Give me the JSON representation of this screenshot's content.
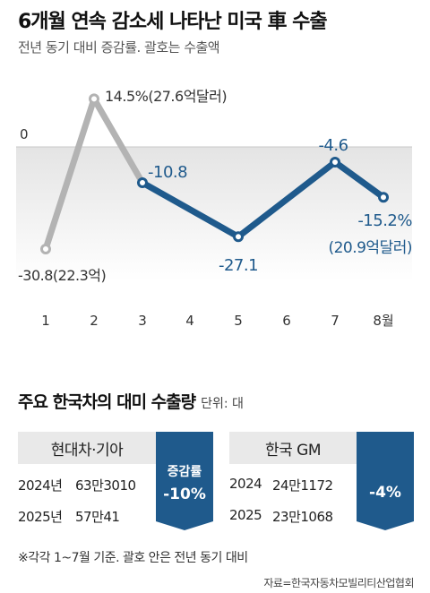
{
  "header": {
    "title": "6개월 연속 감소세 나타난 미국 車 수출",
    "subtitle": "전년 동기 대비 증감률. 괄호는 수출액"
  },
  "chart_data": {
    "type": "line",
    "zero_label": "0",
    "categories": [
      "1",
      "2",
      "3",
      "4",
      "5",
      "6",
      "7",
      "8월"
    ],
    "values": [
      -30.8,
      14.5,
      -10.8,
      null,
      -27.1,
      null,
      -4.6,
      -15.2
    ],
    "highlight_from_index": 2,
    "data_labels": [
      "-30.8(22.3억)",
      "14.5%(27.6억달러)",
      "-10.8",
      "",
      "-27.1",
      "",
      "-4.6",
      "-15.2%"
    ],
    "extra_label": "(20.9억달러)",
    "colors": {
      "gray": "#b3b3b3",
      "blue": "#1f5a8c"
    }
  },
  "section": {
    "title": "주요 한국차의 대미 수출량",
    "unit": "단위: 대"
  },
  "cards": [
    {
      "label": "현대차·기아",
      "rows": [
        {
          "year": "2024년",
          "value": "63만3010"
        },
        {
          "year": "2025년",
          "value": "57만41"
        }
      ],
      "badge_label": "증감률",
      "badge_value": "-10%"
    },
    {
      "label": "한국 GM",
      "rows": [
        {
          "year": "2024",
          "value": "24만1172"
        },
        {
          "year": "2025",
          "value": "23만1068"
        }
      ],
      "badge_label": "",
      "badge_value": "-4%"
    }
  ],
  "footnote": "※각각 1~7월 기준. 괄호 안은 전년 동기 대비",
  "source": "자료=한국자동차모빌리티산업협회",
  "colors": {
    "badge": "#1f5a8c",
    "card_bg": "#e9e9e9"
  }
}
